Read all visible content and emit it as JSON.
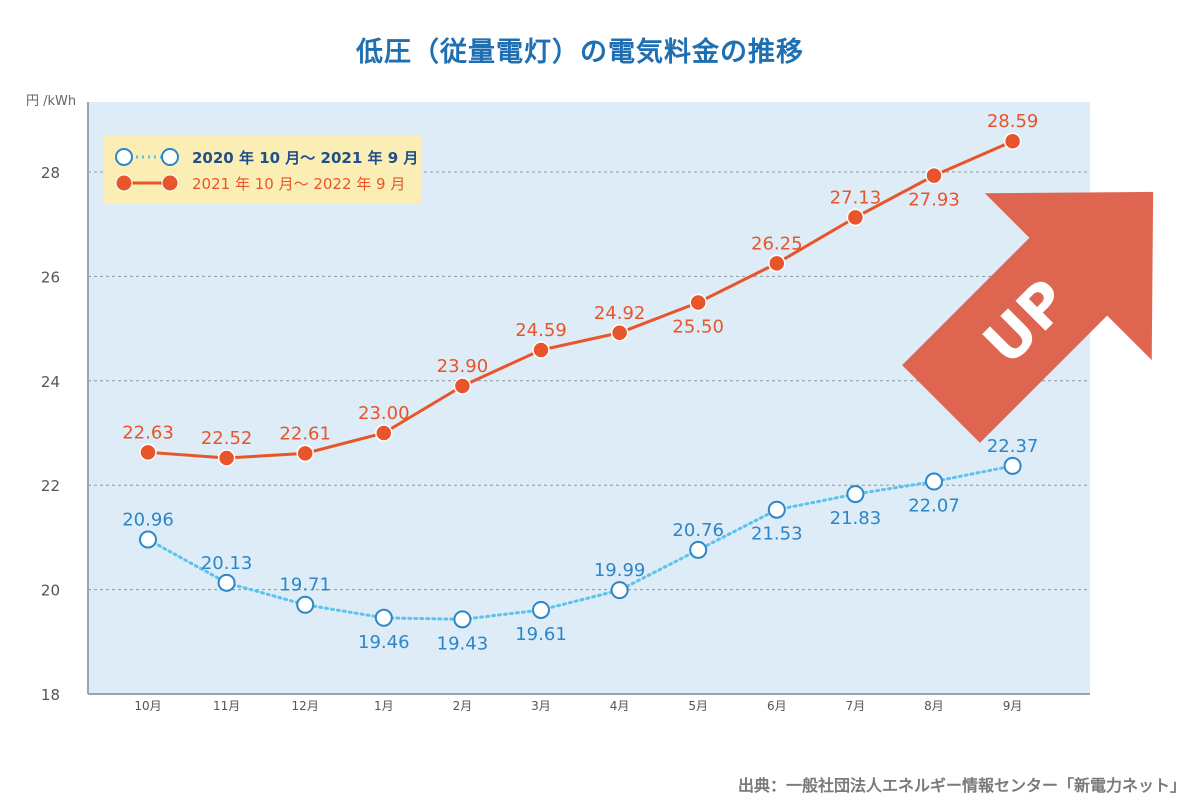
{
  "chart_data": {
    "type": "line",
    "title": "低圧（従量電灯）の電気料金の推移",
    "ylabel": "円 /kWh",
    "xlabel": "",
    "categories": [
      "10月",
      "11月",
      "12月",
      "1月",
      "2月",
      "3月",
      "4月",
      "5月",
      "6月",
      "7月",
      "8月",
      "9月"
    ],
    "ylim": [
      18,
      29
    ],
    "yticks": [
      18,
      20,
      22,
      24,
      26,
      28
    ],
    "grid": true,
    "legend_position": "top-left",
    "series": [
      {
        "name": "2020 年 10 月～ 2021 年 9 月",
        "values": [
          20.96,
          20.13,
          19.71,
          19.46,
          19.43,
          19.61,
          19.99,
          20.76,
          21.53,
          21.83,
          22.07,
          22.37
        ],
        "labels": [
          "20.96",
          "20.13",
          "19.71",
          "19.46",
          "19.43",
          "19.61",
          "19.99",
          "20.76",
          "21.53",
          "21.83",
          "22.07",
          "22.37"
        ],
        "label_positions": [
          "above",
          "above",
          "above",
          "below",
          "below",
          "below",
          "above",
          "above",
          "below",
          "below",
          "below",
          "above"
        ],
        "color": "#2c86c9",
        "line_color": "#5cc2ee",
        "style": "dotted-hollow"
      },
      {
        "name": "2021 年 10 月～ 2022 年 9 月",
        "values": [
          22.63,
          22.52,
          22.61,
          23.0,
          23.9,
          24.59,
          24.92,
          25.5,
          26.25,
          27.13,
          27.93,
          28.59
        ],
        "labels": [
          "22.63",
          "22.52",
          "22.61",
          "23.00",
          "23.90",
          "24.59",
          "24.92",
          "25.50",
          "26.25",
          "27.13",
          "27.93",
          "28.59"
        ],
        "label_positions": [
          "above",
          "above",
          "above",
          "above",
          "above",
          "above",
          "above",
          "below",
          "above",
          "above",
          "below",
          "above"
        ],
        "color": "#e8552a",
        "line_color": "#e8552a",
        "style": "solid-filled"
      }
    ],
    "annotation": {
      "text": "UP",
      "color": "#de6650"
    },
    "colors": {
      "plot_bg": "#ddecf6",
      "legend_bg": "#fbeeb4",
      "grid": "#8a9aa6",
      "axis": "#9aa4ab"
    }
  },
  "source": "出典：一般社団法人エネルギー情報センター「新電力ネット」"
}
